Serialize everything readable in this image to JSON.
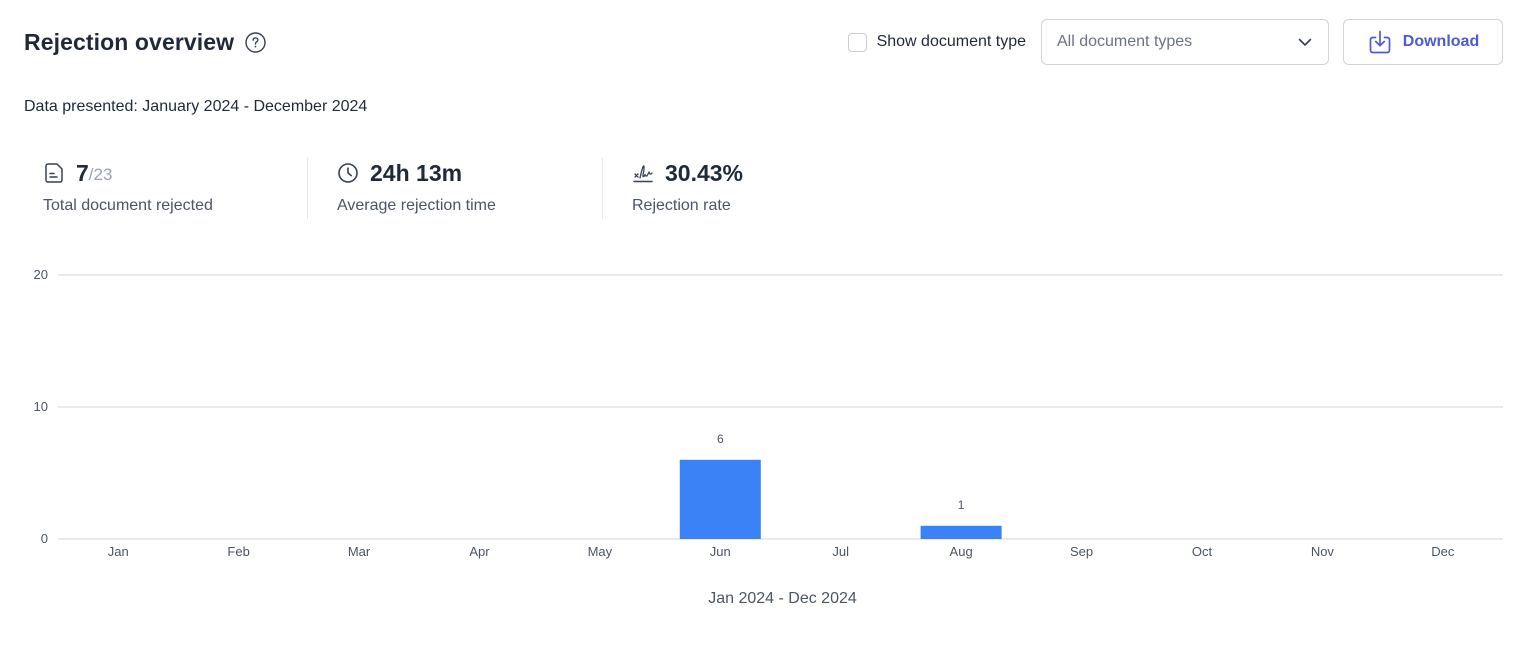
{
  "header": {
    "title": "Rejection overview",
    "help_icon": "question-circle-icon",
    "show_document_type_label": "Show document type",
    "document_type_select": "All document types",
    "download_label": "Download"
  },
  "period": "Data presented: January 2024 - December 2024",
  "stats": {
    "total_rejected": {
      "value": "7",
      "total": "/23",
      "label": "Total document rejected",
      "icon": "document-icon"
    },
    "avg_time": {
      "value": "24h 13m",
      "label": "Average rejection time",
      "icon": "clock-icon"
    },
    "rate": {
      "value": "30.43%",
      "label": "Rejection rate",
      "icon": "signature-icon"
    }
  },
  "colors": {
    "accent": "#4a5bd4",
    "bar": "#3b82f6",
    "grid": "#d1d5db"
  },
  "chart_data": {
    "type": "bar",
    "categories": [
      "Jan",
      "Feb",
      "Mar",
      "Apr",
      "May",
      "Jun",
      "Jul",
      "Aug",
      "Sep",
      "Oct",
      "Nov",
      "Dec"
    ],
    "values": [
      0,
      0,
      0,
      0,
      0,
      6,
      0,
      1,
      0,
      0,
      0,
      0
    ],
    "data_labels": [
      "",
      "",
      "",
      "",
      "",
      "6",
      "",
      "1",
      "",
      "",
      "",
      ""
    ],
    "yticks": [
      "0",
      "10",
      "20"
    ],
    "ylim": [
      0,
      20
    ],
    "xlabel": "Jan 2024 - Dec 2024",
    "ylabel": "",
    "grid": true,
    "legend": "none"
  }
}
